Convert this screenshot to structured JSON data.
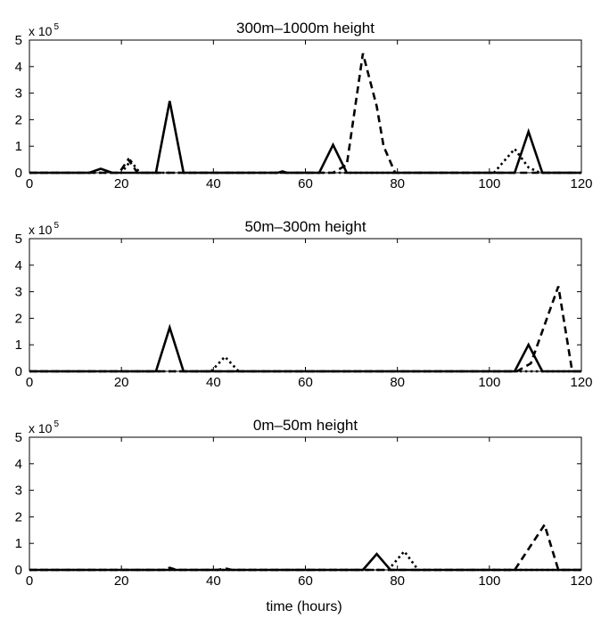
{
  "figure": {
    "xlabel": "time (hours)"
  },
  "chart_data": [
    {
      "type": "line",
      "title": "300m–1000m height",
      "xlim": [
        0,
        120
      ],
      "ylim": [
        0,
        5
      ],
      "xticks": [
        0,
        20,
        40,
        60,
        80,
        100,
        120
      ],
      "yticks": [
        0,
        1,
        2,
        3,
        4,
        5
      ],
      "y_multiplier": {
        "base": "x 10",
        "exponent": "5"
      },
      "series": [
        {
          "style": "solid",
          "points": [
            [
              0,
              0
            ],
            [
              13,
              0
            ],
            [
              15.5,
              0.15
            ],
            [
              18,
              0
            ],
            [
              27.5,
              0
            ],
            [
              30.5,
              2.7
            ],
            [
              33.5,
              0
            ],
            [
              54,
              0
            ],
            [
              55,
              0.05
            ],
            [
              56,
              0
            ],
            [
              63,
              0
            ],
            [
              66,
              1.05
            ],
            [
              69,
              0
            ],
            [
              105.5,
              0
            ],
            [
              108.5,
              1.55
            ],
            [
              111.5,
              0
            ],
            [
              120,
              0
            ]
          ]
        },
        {
          "style": "dashed",
          "points": [
            [
              0,
              0
            ],
            [
              19.5,
              0
            ],
            [
              21.5,
              0.5
            ],
            [
              23.5,
              0
            ],
            [
              66,
              0
            ],
            [
              69,
              0.3
            ],
            [
              72.5,
              4.5
            ],
            [
              75.5,
              2.5
            ],
            [
              77,
              1.0
            ],
            [
              79.5,
              0
            ],
            [
              120,
              0
            ]
          ]
        },
        {
          "style": "dotted",
          "points": [
            [
              0,
              0
            ],
            [
              20,
              0
            ],
            [
              22,
              0.45
            ],
            [
              24,
              0
            ],
            [
              101,
              0
            ],
            [
              105.5,
              0.9
            ],
            [
              108.5,
              0.2
            ],
            [
              111,
              0
            ],
            [
              120,
              0
            ]
          ]
        }
      ]
    },
    {
      "type": "line",
      "title": "50m–300m height",
      "xlim": [
        0,
        120
      ],
      "ylim": [
        0,
        5
      ],
      "xticks": [
        0,
        20,
        40,
        60,
        80,
        100,
        120
      ],
      "yticks": [
        0,
        1,
        2,
        3,
        4,
        5
      ],
      "y_multiplier": {
        "base": "x 10",
        "exponent": "5"
      },
      "series": [
        {
          "style": "solid",
          "points": [
            [
              0,
              0
            ],
            [
              27.5,
              0
            ],
            [
              30.5,
              1.65
            ],
            [
              33.5,
              0
            ],
            [
              105.5,
              0
            ],
            [
              108.5,
              1.0
            ],
            [
              111.5,
              0
            ],
            [
              120,
              0
            ]
          ]
        },
        {
          "style": "dashed",
          "points": [
            [
              0,
              0
            ],
            [
              106,
              0
            ],
            [
              109,
              0.3
            ],
            [
              115,
              3.2
            ],
            [
              118,
              0
            ],
            [
              120,
              0
            ]
          ]
        },
        {
          "style": "dotted",
          "points": [
            [
              0,
              0
            ],
            [
              39.5,
              0
            ],
            [
              42.5,
              0.55
            ],
            [
              45.5,
              0
            ],
            [
              120,
              0
            ]
          ]
        }
      ]
    },
    {
      "type": "line",
      "title": "0m–50m height",
      "xlim": [
        0,
        120
      ],
      "ylim": [
        0,
        5
      ],
      "xticks": [
        0,
        20,
        40,
        60,
        80,
        100,
        120
      ],
      "yticks": [
        0,
        1,
        2,
        3,
        4,
        5
      ],
      "y_multiplier": {
        "base": "x 10",
        "exponent": "5"
      },
      "series": [
        {
          "style": "solid",
          "points": [
            [
              0,
              0
            ],
            [
              72.5,
              0
            ],
            [
              75.5,
              0.6
            ],
            [
              78.5,
              0
            ],
            [
              120,
              0
            ]
          ]
        },
        {
          "style": "dashed",
          "points": [
            [
              0,
              0
            ],
            [
              29,
              0
            ],
            [
              30.5,
              0.08
            ],
            [
              32,
              0
            ],
            [
              41,
              0
            ],
            [
              42.5,
              0.06
            ],
            [
              44,
              0
            ],
            [
              105.5,
              0
            ],
            [
              112,
              1.7
            ],
            [
              115,
              0
            ],
            [
              120,
              0
            ]
          ]
        },
        {
          "style": "dotted",
          "points": [
            [
              0,
              0
            ],
            [
              78,
              0
            ],
            [
              81.5,
              0.7
            ],
            [
              84.5,
              0
            ],
            [
              120,
              0
            ]
          ]
        }
      ]
    }
  ]
}
